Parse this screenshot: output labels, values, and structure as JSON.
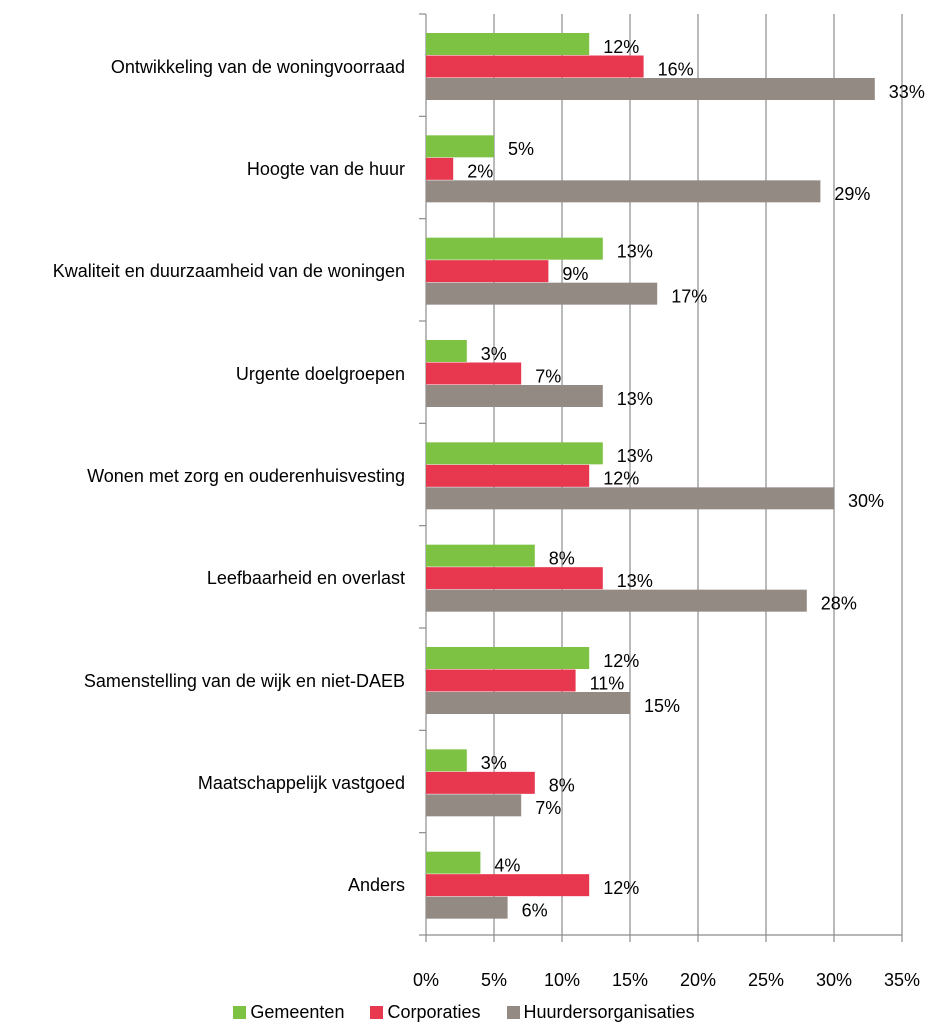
{
  "chart_data": {
    "type": "bar",
    "orientation": "horizontal",
    "categories": [
      "Ontwikkeling van de woningvoorraad",
      "Hoogte van de huur",
      "Kwaliteit en duurzaamheid van de woningen",
      "Urgente doelgroepen",
      "Wonen met zorg en ouderenhuisvesting",
      "Leefbaarheid en overlast",
      "Samenstelling van de wijk en niet-DAEB",
      "Maatschappelijk vastgoed",
      "Anders"
    ],
    "series": [
      {
        "name": "Gemeenten",
        "color": "#7dc242",
        "values": [
          12,
          5,
          13,
          3,
          13,
          8,
          12,
          3,
          4
        ],
        "value_labels": [
          "12%",
          "5%",
          "13%",
          "3%",
          "13%",
          "8%",
          "12%",
          "3%",
          "4%"
        ]
      },
      {
        "name": "Corporaties",
        "color": "#e8384f",
        "values": [
          16,
          2,
          9,
          7,
          12,
          13,
          11,
          8,
          12
        ],
        "value_labels": [
          "16%",
          "2%",
          "9%",
          "7%",
          "12%",
          "13%",
          "11%",
          "8%",
          "12%"
        ]
      },
      {
        "name": "Huurdersorganisaties",
        "color": "#948a84",
        "values": [
          33,
          29,
          17,
          13,
          30,
          28,
          15,
          7,
          6
        ],
        "value_labels": [
          "33%",
          "29%",
          "17%",
          "13%",
          "30%",
          "28%",
          "15%",
          "7%",
          "6%"
        ]
      }
    ],
    "xlim": [
      0,
      35
    ],
    "xticks": [
      {
        "value": 0,
        "label": "0%"
      },
      {
        "value": 5,
        "label": "5%"
      },
      {
        "value": 10,
        "label": "10%"
      },
      {
        "value": 15,
        "label": "15%"
      },
      {
        "value": 20,
        "label": "20%"
      },
      {
        "value": 25,
        "label": "25%"
      },
      {
        "value": 30,
        "label": "30%"
      },
      {
        "value": 35,
        "label": "35%"
      }
    ],
    "grid": true,
    "legend": "bottom"
  }
}
